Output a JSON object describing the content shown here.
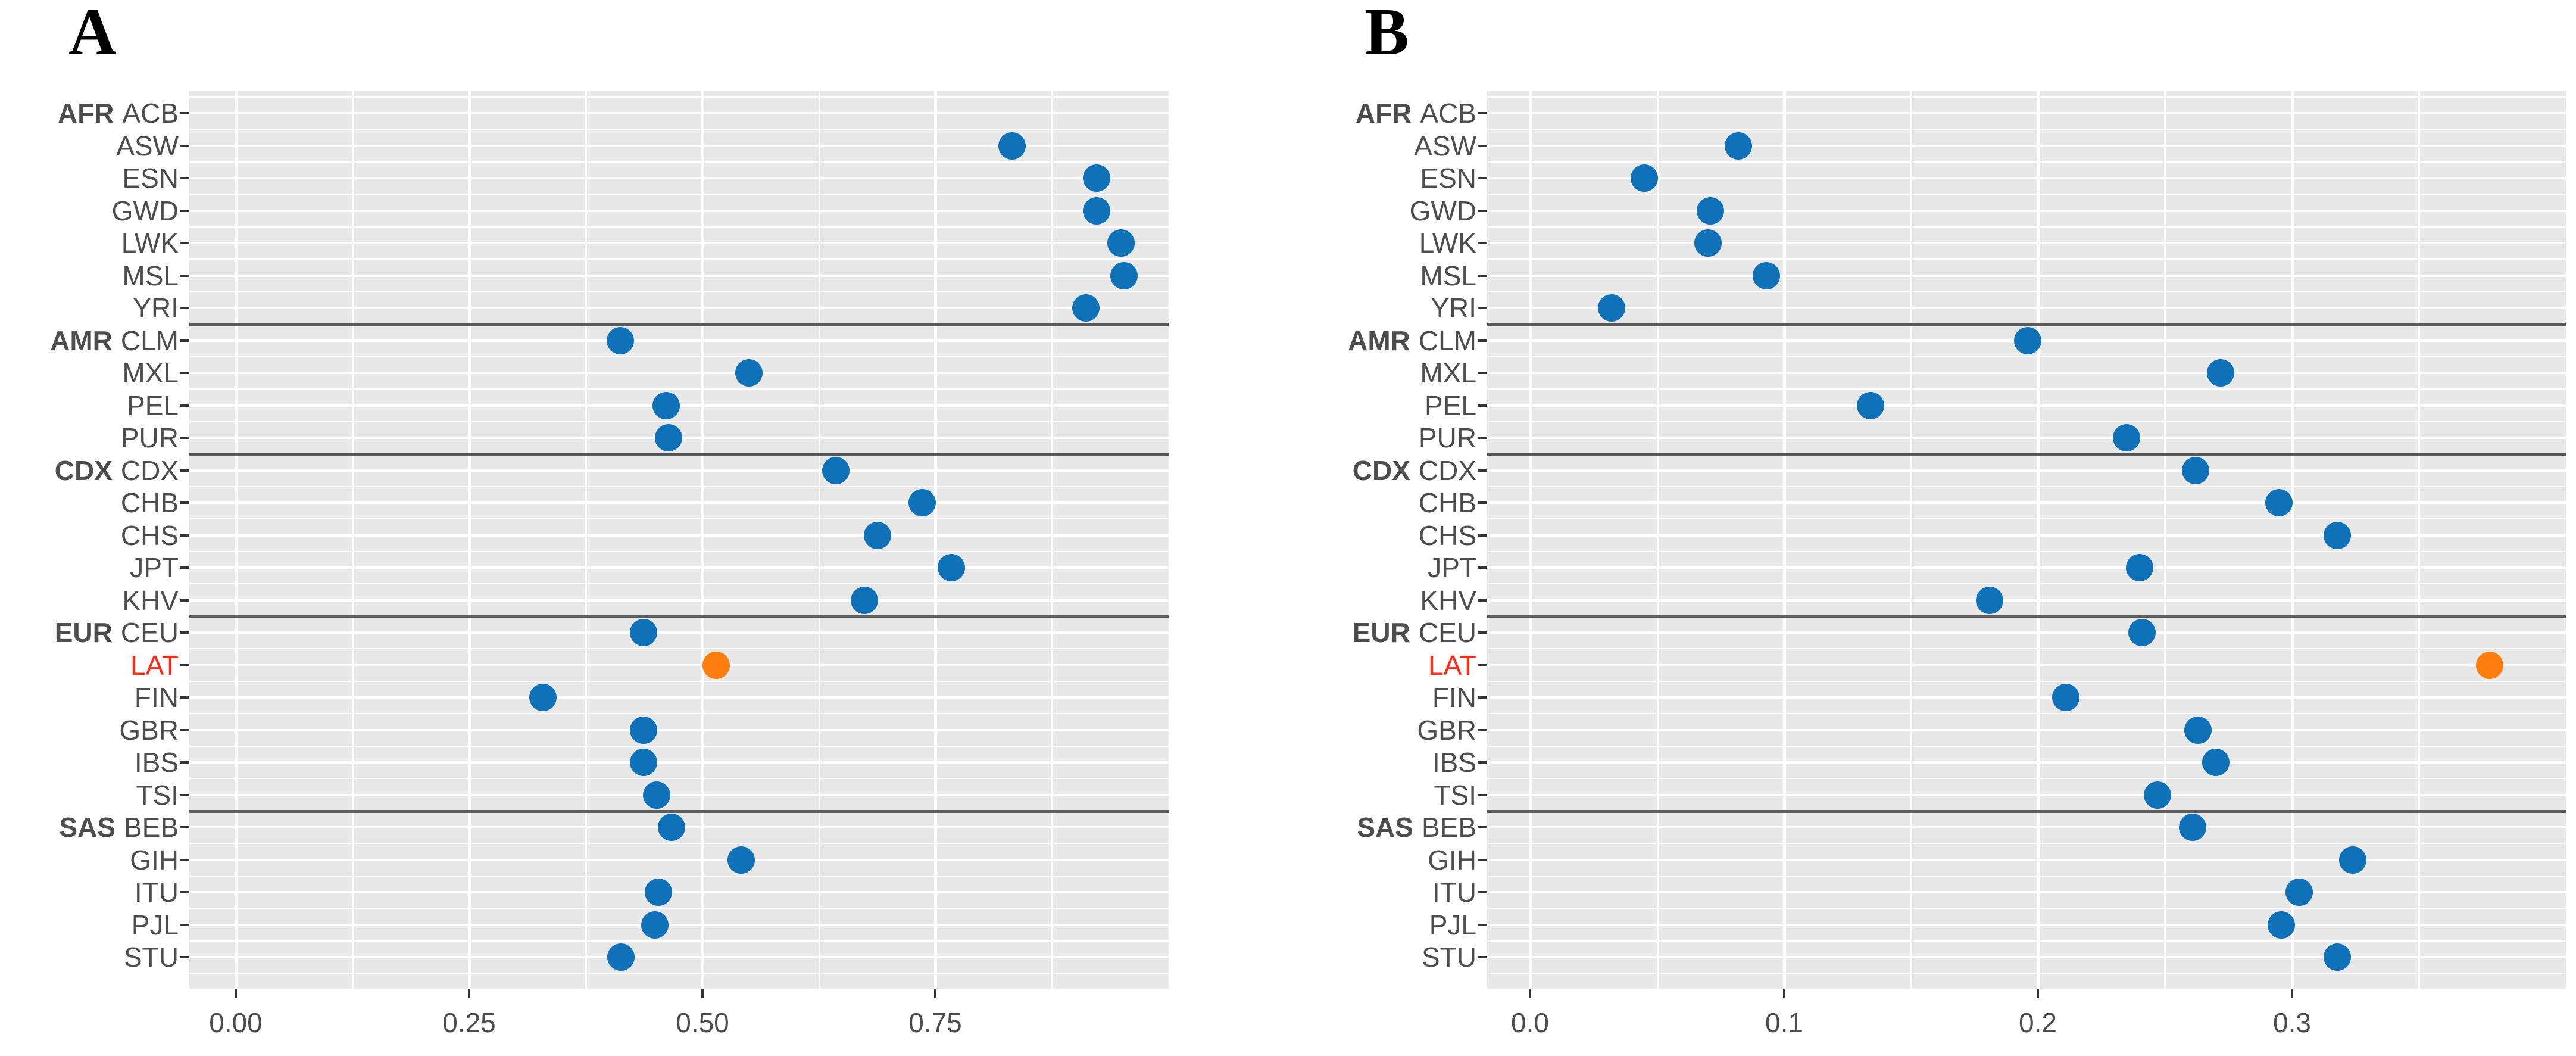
{
  "figure": {
    "panel_a_title": "A",
    "panel_b_title": "B",
    "highlighted_population": "LAT",
    "group_labels": [
      "AFR",
      "AMR",
      "CDX",
      "EUR",
      "SAS"
    ]
  },
  "style": {
    "point_color": "#0F72B9",
    "highlight_point_color": "#FD7E0E",
    "highlight_label_color": "#FF2B14",
    "panel_background": "#E8E8E8",
    "gridline_color": "#FFFFFF",
    "separator_color": "#595959",
    "axis_text_color": "#4D4D4D",
    "tick_color": "#333333"
  },
  "chart_data": [
    {
      "type": "scatter",
      "title": "A",
      "orientation": "horizontal-dot-plot",
      "categories": [
        "ACB",
        "ASW",
        "ESN",
        "GWD",
        "LWK",
        "MSL",
        "YRI",
        "CLM",
        "MXL",
        "PEL",
        "PUR",
        "CDX",
        "CHB",
        "CHS",
        "JPT",
        "KHV",
        "CEU",
        "LAT",
        "FIN",
        "GBR",
        "IBS",
        "TSI",
        "BEB",
        "GIH",
        "ITU",
        "PJL",
        "STU"
      ],
      "category_groups": {
        "AFR": [
          "ACB",
          "ASW",
          "ESN",
          "GWD",
          "LWK",
          "MSL",
          "YRI"
        ],
        "AMR": [
          "CLM",
          "MXL",
          "PEL",
          "PUR"
        ],
        "CDX": [
          "CDX",
          "CHB",
          "CHS",
          "JPT",
          "KHV"
        ],
        "EUR": [
          "CEU",
          "LAT",
          "FIN",
          "GBR",
          "IBS",
          "TSI"
        ],
        "SAS": [
          "BEB",
          "GIH",
          "ITU",
          "PJL",
          "STU"
        ]
      },
      "values": [
        null,
        0.832,
        0.923,
        0.923,
        0.949,
        0.952,
        0.911,
        0.412,
        0.55,
        0.461,
        0.464,
        0.643,
        0.736,
        0.688,
        0.767,
        0.674,
        0.437,
        0.515,
        0.329,
        0.437,
        0.437,
        0.451,
        0.467,
        0.542,
        0.453,
        0.449,
        0.413
      ],
      "highlight_category": "LAT",
      "xticks": [
        0,
        0.25,
        0.5,
        0.75
      ],
      "xtick_labels": [
        "0.00",
        "0.25",
        "0.50",
        "0.75"
      ],
      "xminor": [
        0.125,
        0.375,
        0.625,
        0.875
      ],
      "xlim": [
        -0.05,
        1.0
      ],
      "grid": true,
      "legend": false,
      "xlabel": "",
      "ylabel": ""
    },
    {
      "type": "scatter",
      "title": "B",
      "orientation": "horizontal-dot-plot",
      "categories": [
        "ACB",
        "ASW",
        "ESN",
        "GWD",
        "LWK",
        "MSL",
        "YRI",
        "CLM",
        "MXL",
        "PEL",
        "PUR",
        "CDX",
        "CHB",
        "CHS",
        "JPT",
        "KHV",
        "CEU",
        "LAT",
        "FIN",
        "GBR",
        "IBS",
        "TSI",
        "BEB",
        "GIH",
        "ITU",
        "PJL",
        "STU"
      ],
      "category_groups": {
        "AFR": [
          "ACB",
          "ASW",
          "ESN",
          "GWD",
          "LWK",
          "MSL",
          "YRI"
        ],
        "AMR": [
          "CLM",
          "MXL",
          "PEL",
          "PUR"
        ],
        "CDX": [
          "CDX",
          "CHB",
          "CHS",
          "JPT",
          "KHV"
        ],
        "EUR": [
          "CEU",
          "LAT",
          "FIN",
          "GBR",
          "IBS",
          "TSI"
        ],
        "SAS": [
          "BEB",
          "GIH",
          "ITU",
          "PJL",
          "STU"
        ]
      },
      "values": [
        null,
        0.082,
        0.045,
        0.071,
        0.07,
        0.093,
        0.032,
        0.196,
        0.272,
        0.134,
        0.235,
        0.262,
        0.295,
        0.318,
        0.24,
        0.181,
        0.241,
        0.378,
        0.211,
        0.263,
        0.27,
        0.247,
        0.261,
        0.324,
        0.303,
        0.296,
        0.318
      ],
      "highlight_category": "LAT",
      "xticks": [
        0,
        0.1,
        0.2,
        0.3
      ],
      "xtick_labels": [
        "0.0",
        "0.1",
        "0.2",
        "0.3"
      ],
      "xminor": [
        0.05,
        0.15,
        0.25,
        0.35
      ],
      "xlim": [
        -0.017,
        0.408
      ],
      "grid": true,
      "legend": false,
      "xlabel": "",
      "ylabel": ""
    }
  ]
}
